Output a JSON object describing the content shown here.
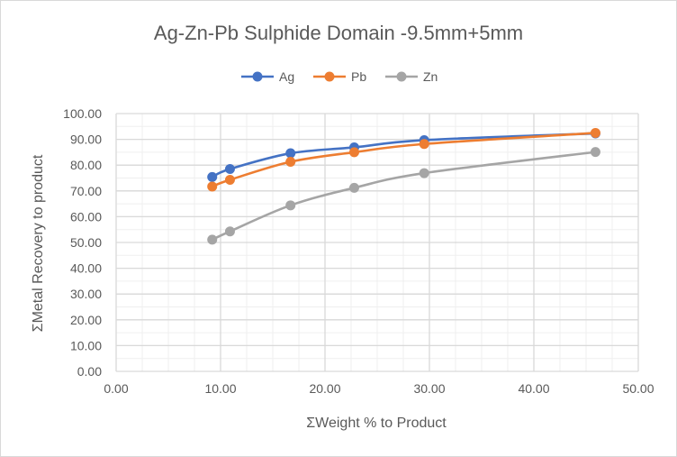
{
  "chart_data": {
    "type": "line",
    "title": "Ag-Zn-Pb Sulphide Domain -9.5mm+5mm",
    "xlabel": "ΣWeight % to Product",
    "ylabel": "ΣMetal Recovery to product",
    "xlim": [
      0,
      50
    ],
    "ylim": [
      0,
      100
    ],
    "xticks": [
      "0.00",
      "10.00",
      "20.00",
      "30.00",
      "40.00",
      "50.00"
    ],
    "yticks": [
      "0.00",
      "10.00",
      "20.00",
      "30.00",
      "40.00",
      "50.00",
      "60.00",
      "70.00",
      "80.00",
      "90.00",
      "100.00"
    ],
    "grid": true,
    "smooth": true,
    "legend_position": "top",
    "series": [
      {
        "name": "Ag",
        "color": "#4472c4",
        "x": [
          9.2,
          10.9,
          16.7,
          22.8,
          29.5,
          45.9
        ],
        "y": [
          75.4,
          78.5,
          84.6,
          86.9,
          89.7,
          92.3
        ]
      },
      {
        "name": "Pb",
        "color": "#ed7d31",
        "x": [
          9.2,
          10.9,
          16.7,
          22.8,
          29.5,
          45.9
        ],
        "y": [
          71.7,
          74.3,
          81.3,
          85.0,
          88.2,
          92.5
        ]
      },
      {
        "name": "Zn",
        "color": "#a5a5a5",
        "x": [
          9.2,
          10.9,
          16.7,
          22.8,
          29.5,
          45.9
        ],
        "y": [
          51.1,
          54.3,
          64.4,
          71.2,
          76.9,
          85.1
        ]
      }
    ]
  }
}
